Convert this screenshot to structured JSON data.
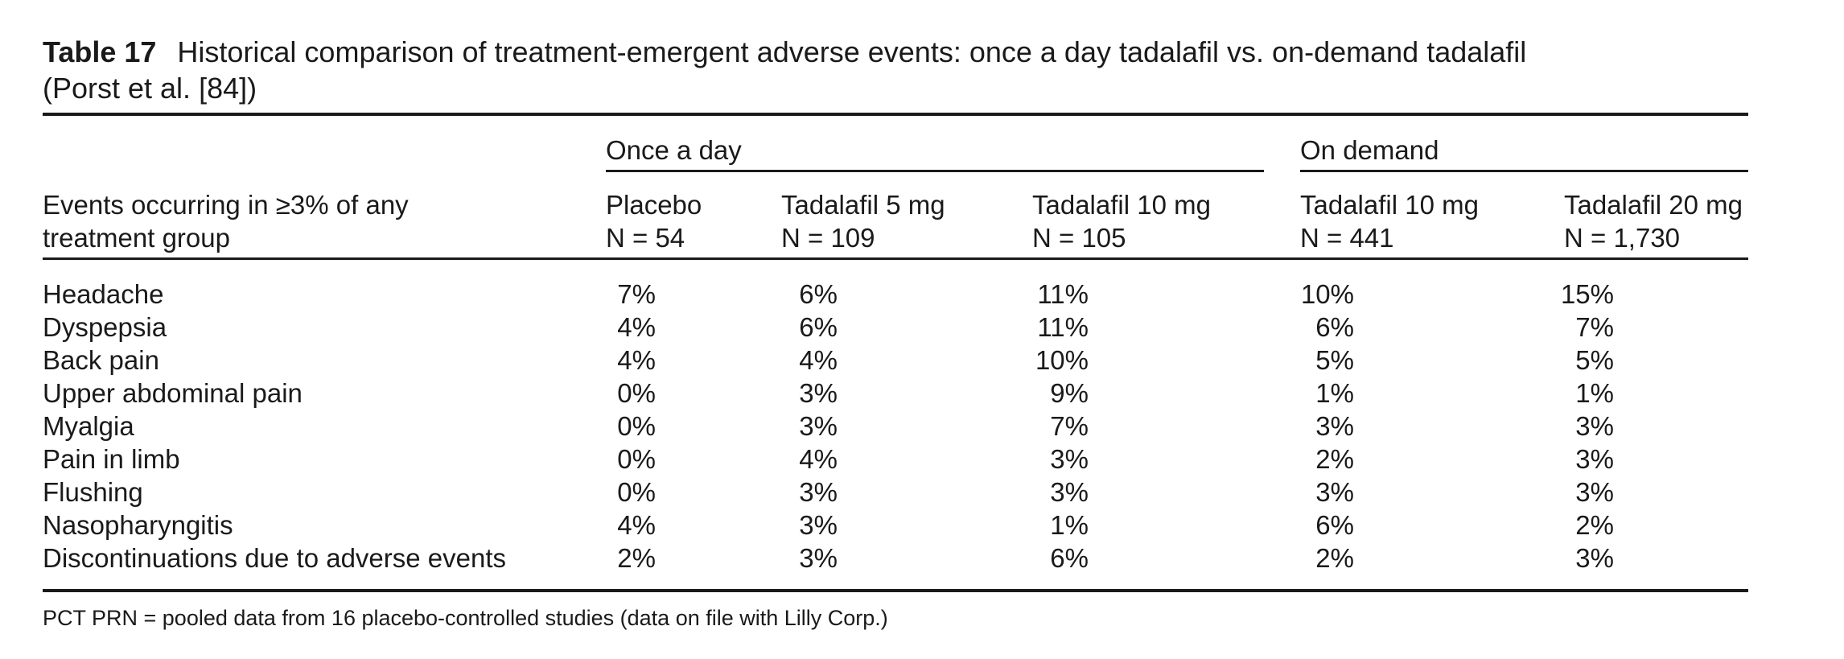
{
  "table": {
    "label": "Table 17",
    "title": "Historical comparison of treatment-emergent adverse events: once a day tadalafil vs. on-demand tadalafil",
    "title_line2": "(Porst et al. [84])",
    "stub_header": "Events occurring in ≥3% of any treatment group",
    "groups": [
      {
        "label": "Once a day"
      },
      {
        "label": "On demand"
      }
    ],
    "columns": [
      {
        "name": "Placebo",
        "n": "N = 54"
      },
      {
        "name": "Tadalafil 5 mg",
        "n": "N = 109"
      },
      {
        "name": "Tadalafil 10 mg",
        "n": "N = 105"
      },
      {
        "name": "Tadalafil 10 mg",
        "n": "N = 441"
      },
      {
        "name": "Tadalafil 20 mg",
        "n": "N = 1,730"
      }
    ],
    "rows": [
      {
        "event": "Headache",
        "values": [
          "7%",
          "6%",
          "11%",
          "10%",
          "15%"
        ]
      },
      {
        "event": "Dyspepsia",
        "values": [
          "4%",
          "6%",
          "11%",
          "6%",
          "7%"
        ]
      },
      {
        "event": "Back pain",
        "values": [
          "4%",
          "4%",
          "10%",
          "5%",
          "5%"
        ]
      },
      {
        "event": "Upper abdominal pain",
        "values": [
          "0%",
          "3%",
          "9%",
          "1%",
          "1%"
        ]
      },
      {
        "event": "Myalgia",
        "values": [
          "0%",
          "3%",
          "7%",
          "3%",
          "3%"
        ]
      },
      {
        "event": "Pain in limb",
        "values": [
          "0%",
          "4%",
          "3%",
          "2%",
          "3%"
        ]
      },
      {
        "event": "Flushing",
        "values": [
          "0%",
          "3%",
          "3%",
          "3%",
          "3%"
        ]
      },
      {
        "event": "Nasopharyngitis",
        "values": [
          "4%",
          "3%",
          "1%",
          "6%",
          "2%"
        ]
      },
      {
        "event": "Discontinuations due to adverse events",
        "values": [
          "2%",
          "3%",
          "6%",
          "2%",
          "3%"
        ]
      }
    ],
    "footnote": "PCT PRN = pooled data from 16 placebo-controlled studies (data on file with Lilly Corp.)"
  }
}
